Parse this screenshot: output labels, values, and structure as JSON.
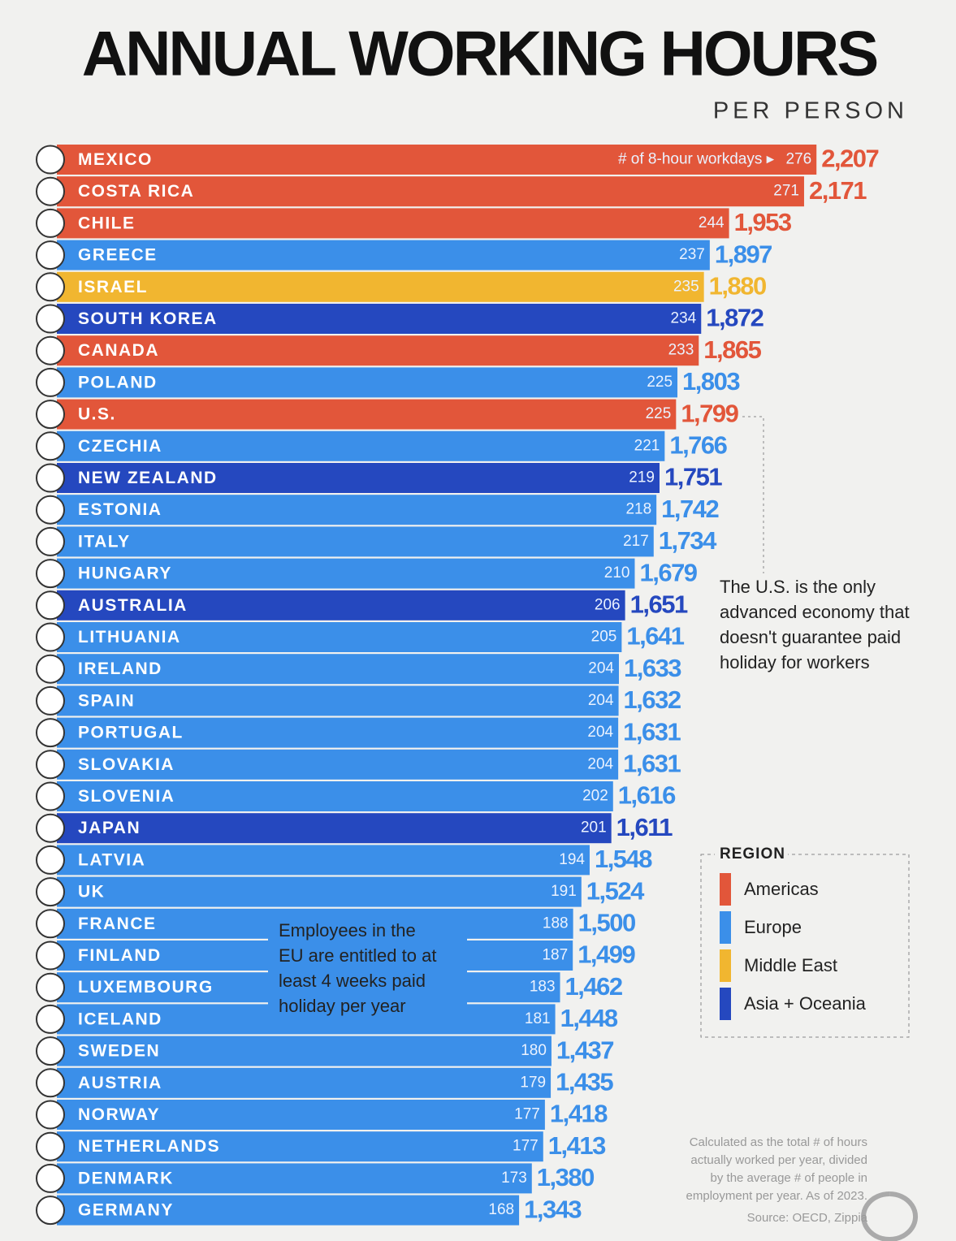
{
  "chart_data": {
    "type": "bar",
    "orientation": "horizontal",
    "title": "ANNUAL WORKING HOURS",
    "subtitle": "PER PERSON",
    "categories": [
      "MEXICO",
      "COSTA RICA",
      "CHILE",
      "GREECE",
      "ISRAEL",
      "SOUTH KOREA",
      "CANADA",
      "POLAND",
      "U.S.",
      "CZECHIA",
      "NEW ZEALAND",
      "ESTONIA",
      "ITALY",
      "HUNGARY",
      "AUSTRALIA",
      "LITHUANIA",
      "IRELAND",
      "SPAIN",
      "PORTUGAL",
      "SLOVAKIA",
      "SLOVENIA",
      "JAPAN",
      "LATVIA",
      "UK",
      "FRANCE",
      "FINLAND",
      "LUXEMBOURG",
      "ICELAND",
      "SWEDEN",
      "AUSTRIA",
      "NORWAY",
      "NETHERLANDS",
      "DENMARK",
      "GERMANY"
    ],
    "values": [
      2207,
      2171,
      1953,
      1897,
      1880,
      1872,
      1865,
      1803,
      1799,
      1766,
      1751,
      1742,
      1734,
      1679,
      1651,
      1641,
      1633,
      1632,
      1631,
      1631,
      1616,
      1611,
      1548,
      1524,
      1500,
      1499,
      1462,
      1448,
      1437,
      1435,
      1418,
      1413,
      1380,
      1343
    ],
    "value_labels": [
      "2,207",
      "2,171",
      "1,953",
      "1,897",
      "1,880",
      "1,872",
      "1,865",
      "1,803",
      "1,799",
      "1,766",
      "1,751",
      "1,742",
      "1,734",
      "1,679",
      "1,651",
      "1,641",
      "1,633",
      "1,632",
      "1,631",
      "1,631",
      "1,616",
      "1,611",
      "1,548",
      "1,524",
      "1,500",
      "1,499",
      "1,462",
      "1,448",
      "1,437",
      "1,435",
      "1,418",
      "1,413",
      "1,380",
      "1,343"
    ],
    "workdays_label": "# of 8-hour workdays ▸",
    "workdays": [
      276,
      271,
      244,
      237,
      235,
      234,
      233,
      225,
      225,
      221,
      219,
      218,
      217,
      210,
      206,
      205,
      204,
      204,
      204,
      204,
      202,
      201,
      194,
      191,
      188,
      187,
      183,
      181,
      180,
      179,
      177,
      177,
      173,
      168
    ],
    "colors": [
      "#e2563a",
      "#e2563a",
      "#e2563a",
      "#3b8fe9",
      "#f1b630",
      "#2548bf",
      "#e2563a",
      "#3b8fe9",
      "#e2563a",
      "#3b8fe9",
      "#2548bf",
      "#3b8fe9",
      "#3b8fe9",
      "#3b8fe9",
      "#2548bf",
      "#3b8fe9",
      "#3b8fe9",
      "#3b8fe9",
      "#3b8fe9",
      "#3b8fe9",
      "#3b8fe9",
      "#2548bf",
      "#3b8fe9",
      "#3b8fe9",
      "#3b8fe9",
      "#3b8fe9",
      "#3b8fe9",
      "#3b8fe9",
      "#3b8fe9",
      "#3b8fe9",
      "#3b8fe9",
      "#3b8fe9",
      "#3b8fe9",
      "#3b8fe9"
    ],
    "xlim": [
      0,
      2400
    ],
    "legend": {
      "title": "REGION",
      "items": [
        {
          "name": "Americas",
          "color": "#e2563a"
        },
        {
          "name": "Europe",
          "color": "#3b8fe9"
        },
        {
          "name": "Middle East",
          "color": "#f1b630"
        },
        {
          "name": "Asia + Oceania",
          "color": "#2548bf"
        }
      ]
    },
    "us_note": [
      "The U.S. is the only",
      "advanced economy that",
      "doesn't guarantee paid",
      "holiday for workers"
    ],
    "eu_note": [
      "Employees in the",
      "EU are entitled to at",
      "least 4 weeks paid",
      "holiday per year"
    ],
    "source_note": [
      "Calculated as the total # of hours",
      "actually worked per year, divided",
      "by the average # of people in",
      "employment per year. As of 2023.",
      "Source: OECD, Zippia"
    ]
  }
}
